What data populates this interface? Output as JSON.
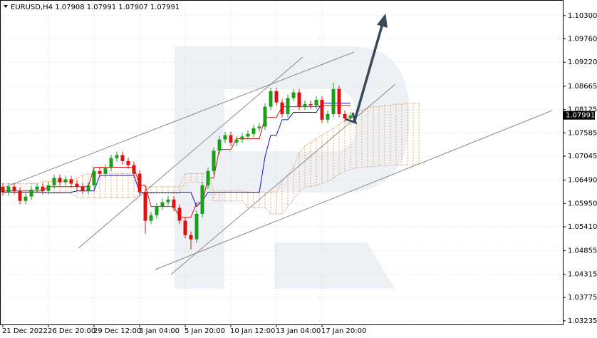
{
  "chart_data": {
    "type": "candlestick",
    "title": "EURUSD,H4",
    "header_ohlc": [
      1.07908,
      1.07991,
      1.07907,
      1.07991
    ],
    "categories": [
      "21 Dec 2022",
      null,
      null,
      null,
      null,
      null,
      null,
      null,
      "26 Dec 20:00",
      null,
      null,
      null,
      null,
      null,
      null,
      null,
      "29 Dec 12:00",
      null,
      null,
      null,
      null,
      null,
      null,
      null,
      "3 Jan 04:00",
      null,
      null,
      null,
      null,
      null,
      null,
      null,
      "5 Jan 20:00",
      null,
      null,
      null,
      null,
      null,
      null,
      null,
      "10 Jan 12:00",
      null,
      null,
      null,
      null,
      null,
      null,
      null,
      "13 Jan 04:00",
      null,
      null,
      null,
      null,
      null,
      null,
      null,
      "17 Jan 20:00",
      null,
      null,
      null,
      null,
      null,
      null,
      null,
      null,
      null,
      null,
      null,
      null,
      null,
      null,
      null,
      null,
      null
    ],
    "open": [
      1.0634,
      1.0621,
      1.0634,
      1.0624,
      1.0601,
      1.0611,
      1.0627,
      1.0634,
      1.0624,
      1.0637,
      1.0654,
      1.0644,
      1.0651,
      1.0641,
      1.0634,
      1.0624,
      1.0637,
      1.067,
      1.0664,
      1.0677,
      1.07,
      1.0707,
      1.0693,
      1.0684,
      1.0664,
      1.0621,
      1.0555,
      1.0568,
      1.0588,
      1.0598,
      1.0604,
      1.0585,
      1.0555,
      1.0522,
      1.0512,
      1.0571,
      1.0637,
      1.067,
      1.0717,
      1.0743,
      1.0753,
      1.0736,
      1.0743,
      1.075,
      1.0756,
      1.0769,
      1.0773,
      1.0819,
      1.0855,
      1.0829,
      1.0802,
      1.0839,
      1.0852,
      1.0819,
      1.0825,
      1.0822,
      1.0835,
      1.0789,
      1.0802,
      1.086,
      1.0802,
      1.0792,
      null,
      null,
      null,
      null,
      null,
      null,
      null,
      null,
      null,
      null,
      null,
      null
    ],
    "high": [
      1.0642,
      1.0642,
      1.0642,
      1.0632,
      1.0619,
      1.0635,
      1.0642,
      1.0642,
      1.0645,
      1.0662,
      1.0662,
      1.0659,
      1.0659,
      1.0649,
      1.0642,
      1.0645,
      1.0678,
      1.0678,
      1.0685,
      1.0708,
      1.0715,
      1.0715,
      1.0701,
      1.0692,
      1.0672,
      1.0629,
      1.0576,
      1.0596,
      1.0606,
      1.0612,
      1.0612,
      1.0593,
      1.0563,
      1.053,
      1.0579,
      1.0645,
      1.0678,
      1.0725,
      1.0751,
      1.0761,
      1.0761,
      1.0751,
      1.0758,
      1.0764,
      1.0777,
      1.0781,
      1.0827,
      1.0863,
      1.0863,
      1.0837,
      1.0847,
      1.086,
      1.086,
      1.0833,
      1.0833,
      1.0843,
      1.0843,
      1.081,
      1.0875,
      1.0868,
      1.081,
      1.0807,
      null,
      null,
      null,
      null,
      null,
      null,
      null,
      null,
      null,
      null,
      null,
      null
    ],
    "low": [
      1.0613,
      1.0613,
      1.0616,
      1.0593,
      1.0593,
      1.0603,
      1.0619,
      1.0616,
      1.0616,
      1.0629,
      1.0636,
      1.0636,
      1.0633,
      1.0626,
      1.0616,
      1.0616,
      1.0629,
      1.0656,
      1.0656,
      1.0669,
      1.0692,
      1.0685,
      1.0676,
      1.0656,
      1.0613,
      1.0525,
      1.0547,
      1.056,
      1.058,
      1.059,
      1.0577,
      1.0547,
      1.0514,
      1.0489,
      1.0504,
      1.0563,
      1.0629,
      1.0662,
      1.0709,
      1.0735,
      1.0728,
      1.0728,
      1.0735,
      1.0742,
      1.0748,
      1.0761,
      1.0765,
      1.0811,
      1.0821,
      1.0794,
      1.0794,
      1.0831,
      1.0811,
      1.0811,
      1.0814,
      1.0814,
      1.0781,
      1.0781,
      1.0794,
      1.0794,
      1.0784,
      1.0784,
      null,
      null,
      null,
      null,
      null,
      null,
      null,
      null,
      null,
      null,
      null,
      null
    ],
    "close": [
      1.0621,
      1.0634,
      1.0624,
      1.0601,
      1.0611,
      1.0627,
      1.0634,
      1.0624,
      1.0637,
      1.0654,
      1.0644,
      1.0651,
      1.0641,
      1.0634,
      1.0624,
      1.0637,
      1.067,
      1.0664,
      1.0677,
      1.07,
      1.0707,
      1.0693,
      1.0684,
      1.0664,
      1.0621,
      1.0555,
      1.0568,
      1.0588,
      1.0598,
      1.0604,
      1.0585,
      1.0555,
      1.0522,
      1.0512,
      1.0571,
      1.0637,
      1.067,
      1.0717,
      1.0743,
      1.0753,
      1.0736,
      1.0743,
      1.075,
      1.0756,
      1.0769,
      1.0773,
      1.0819,
      1.0855,
      1.0829,
      1.0802,
      1.0839,
      1.0852,
      1.0819,
      1.0825,
      1.0822,
      1.0835,
      1.0789,
      1.0802,
      1.086,
      1.0802,
      1.0792,
      1.0799,
      null,
      null,
      null,
      null,
      null,
      null,
      null,
      null,
      null,
      null,
      null,
      null
    ],
    "up_color": "#1b9e1b",
    "down_color": "#e01010",
    "lines": [
      {
        "color": "#e01010",
        "values": [
          1.0624,
          1.0624,
          1.0624,
          1.0624,
          1.0624,
          1.0624,
          1.0624,
          1.0624,
          1.0634,
          1.0634,
          1.0634,
          1.0634,
          1.0634,
          1.0634,
          1.0634,
          1.0634,
          1.0679,
          1.0679,
          1.0679,
          1.0679,
          1.0679,
          1.0679,
          1.0679,
          1.0679,
          1.0637,
          1.0637,
          1.0588,
          1.0588,
          1.0588,
          1.0588,
          1.0588,
          1.0563,
          1.0563,
          1.0563,
          1.0596,
          1.0596,
          1.0654,
          1.0654,
          1.072,
          1.072,
          1.072,
          1.0745,
          1.0745,
          1.0745,
          1.0745,
          1.0745,
          1.0794,
          1.0794,
          1.0794,
          1.0819,
          1.0819,
          1.0819,
          1.0819,
          1.0819,
          1.0819,
          1.0819,
          1.0822,
          1.0822,
          1.0822,
          1.0822,
          1.0822,
          1.0822,
          null,
          null,
          null,
          null,
          null,
          null,
          null,
          null,
          null,
          null,
          null,
          null
        ]
      },
      {
        "color": "#1010c8",
        "values": [
          1.0621,
          1.0621,
          1.0621,
          1.0621,
          1.0621,
          1.0621,
          1.0621,
          1.0621,
          1.0621,
          1.0621,
          1.0621,
          1.0621,
          1.0621,
          1.0624,
          1.0624,
          1.0624,
          1.0624,
          1.066,
          1.066,
          1.066,
          1.066,
          1.066,
          1.066,
          1.066,
          1.0621,
          1.0621,
          1.0621,
          1.0621,
          1.0621,
          1.0621,
          1.0621,
          1.0621,
          1.0621,
          1.0621,
          1.0588,
          1.0601,
          1.0621,
          1.0621,
          1.0621,
          1.0621,
          1.0621,
          1.0621,
          1.0621,
          1.0621,
          1.0621,
          1.0621,
          1.0703,
          1.0753,
          1.0753,
          1.0789,
          1.0789,
          1.0806,
          1.0806,
          1.0806,
          1.0806,
          1.0806,
          1.0827,
          1.0827,
          1.0827,
          1.0827,
          1.0827,
          1.0827,
          null,
          null,
          null,
          null,
          null,
          null,
          null,
          null,
          null,
          null,
          null,
          null
        ]
      }
    ],
    "cloud": {
      "span_a": {
        "color": "#f0a050",
        "values": [
          1.0641,
          1.0641,
          1.0641,
          1.0641,
          1.0641,
          1.0641,
          1.0641,
          1.0646,
          1.0646,
          1.0646,
          1.0646,
          1.0646,
          1.0646,
          1.0654,
          1.066,
          1.0664,
          1.0664,
          1.0664,
          1.0664,
          1.0664,
          1.0664,
          1.0664,
          1.0664,
          1.0664,
          1.0634,
          1.0634,
          1.0634,
          1.0634,
          1.0634,
          1.0634,
          1.0634,
          1.0634,
          1.0664,
          1.0664,
          1.0664,
          1.0664,
          1.0664,
          1.0624,
          1.0624,
          1.0624,
          1.0624,
          1.0624,
          1.0624,
          1.0621,
          1.0621,
          1.0621,
          1.0621,
          1.0621,
          1.0621,
          1.0646,
          1.0662,
          1.0679,
          1.0712,
          1.0728,
          1.0736,
          1.0745,
          1.0753,
          1.0761,
          1.0769,
          1.0778,
          1.0789,
          1.0799,
          1.0806,
          1.0811,
          1.0816,
          1.0819,
          1.0819,
          1.0822,
          1.0822,
          1.0825,
          1.0825,
          1.0827,
          1.0827,
          1.0827
        ]
      },
      "span_b": {
        "color": "#d4a49c",
        "values": [
          1.0624,
          1.0624,
          1.0624,
          1.0624,
          1.0624,
          1.0624,
          1.0624,
          1.0618,
          1.0618,
          1.0618,
          1.0618,
          1.0618,
          1.0618,
          1.0608,
          1.0608,
          1.0608,
          1.0608,
          1.0608,
          1.0608,
          1.0608,
          1.0608,
          1.0608,
          1.0608,
          1.0608,
          1.0618,
          1.0618,
          1.0618,
          1.0618,
          1.0618,
          1.0618,
          1.0618,
          1.0618,
          1.0644,
          1.0644,
          1.0644,
          1.0644,
          1.0644,
          1.0601,
          1.0601,
          1.0601,
          1.0601,
          1.0601,
          1.0601,
          1.0585,
          1.0585,
          1.0585,
          1.0585,
          1.0571,
          1.0571,
          1.0571,
          1.0588,
          1.0604,
          1.0621,
          1.0634,
          1.0634,
          1.0637,
          1.0641,
          1.0646,
          1.0654,
          1.0662,
          1.067,
          1.0674,
          1.0677,
          1.0679,
          1.068,
          1.068,
          1.0682,
          1.0682,
          1.0684,
          1.0684,
          1.0684,
          1.0684,
          1.0685,
          1.0685
        ]
      }
    },
    "current_price": 1.07991,
    "ylim": [
      1.0315,
      1.1066
    ],
    "yticks": [
      {
        "value": 1.103,
        "label": "1.10300"
      },
      {
        "value": 1.0976,
        "label": "1.09760"
      },
      {
        "value": 1.0922,
        "label": "1.09220"
      },
      1.08665,
      1.08125,
      1.07585,
      1.07045,
      {
        "value": 1.0649,
        "label": "1.06490"
      },
      {
        "value": 1.0595,
        "label": "1.05950"
      },
      {
        "value": 1.0541,
        "label": "1.05410"
      },
      1.04855,
      1.04315,
      1.03775,
      1.03235
    ],
    "grid": true
  }
}
